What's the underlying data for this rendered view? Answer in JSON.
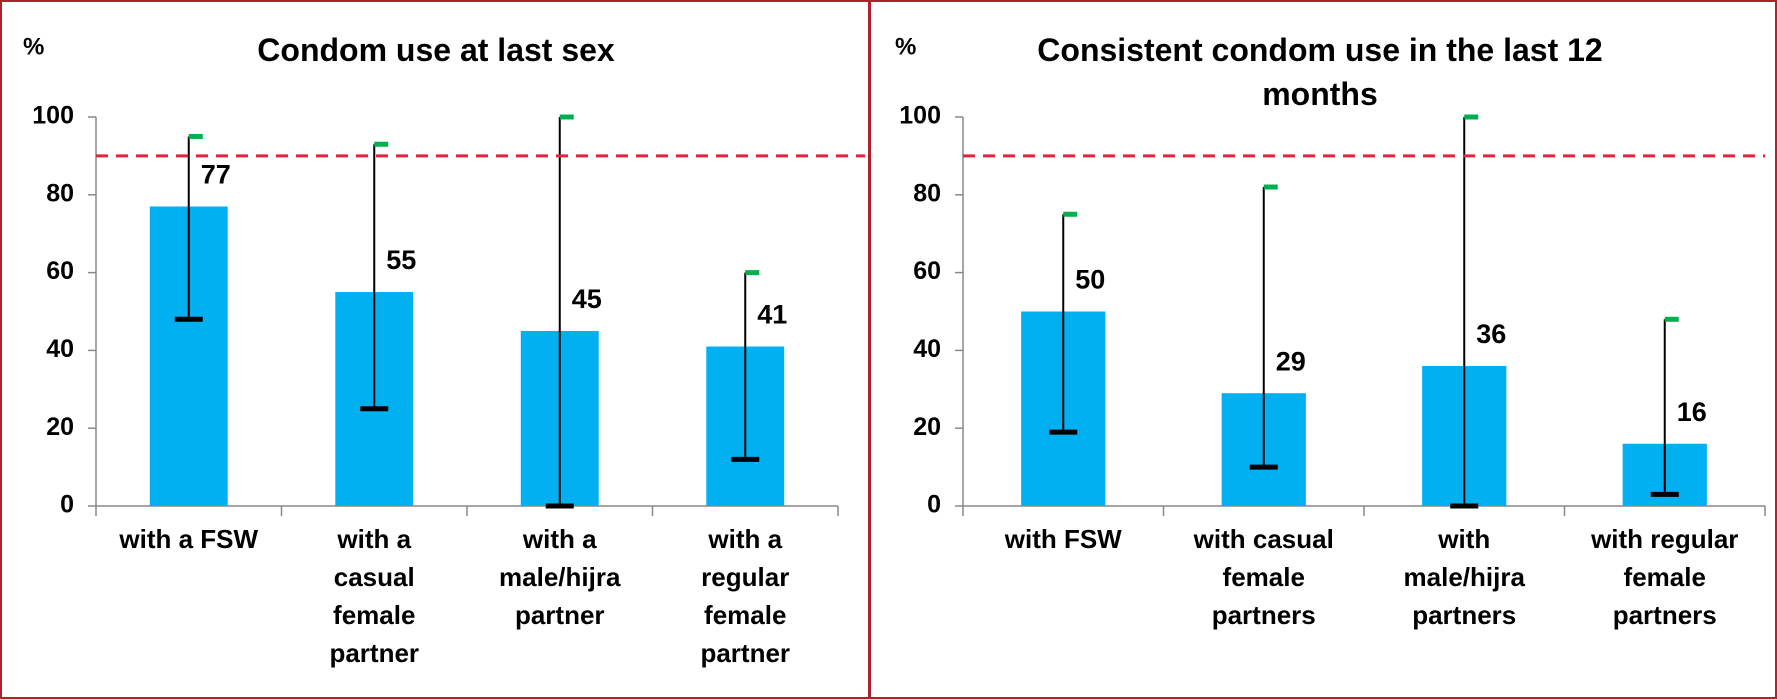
{
  "chart_data": [
    {
      "type": "bar",
      "title": "Condom use at last sex",
      "ylabel": "%",
      "categories": [
        "with a FSW",
        "with a casual female partner",
        "with a male/hijra partner",
        "with a regular female partner"
      ],
      "values": [
        77,
        55,
        45,
        41
      ],
      "error_low": [
        48,
        25,
        0,
        12
      ],
      "error_high": [
        95,
        93,
        100,
        60
      ],
      "color": "#00b0f0",
      "reference_line": 90,
      "reference_color": "#e8203a",
      "ylim": [
        0,
        100
      ],
      "yticks": [
        0,
        20,
        40,
        60,
        80,
        100
      ]
    },
    {
      "type": "bar",
      "title": "Consistent condom use in the last 12 months",
      "ylabel": "%",
      "categories": [
        "with FSW",
        "with casual female partners",
        "with male/hijra partners",
        "with regular female partners"
      ],
      "values": [
        50,
        29,
        36,
        16
      ],
      "error_low": [
        19,
        10,
        0,
        3
      ],
      "error_high": [
        75,
        82,
        100,
        48
      ],
      "color": "#00b0f0",
      "reference_line": 90,
      "reference_color": "#e8203a",
      "ylim": [
        0,
        100
      ],
      "yticks": [
        0,
        20,
        40,
        60,
        80,
        100
      ]
    }
  ]
}
